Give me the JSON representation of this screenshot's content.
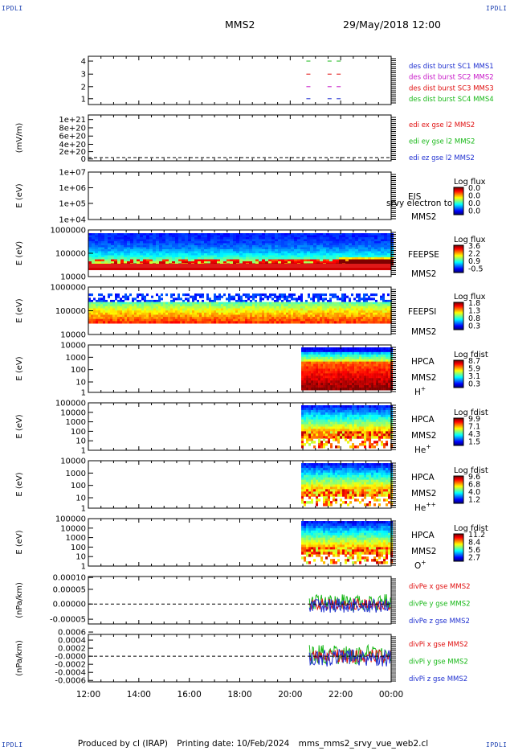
{
  "header": {
    "corner_tl": "IPDLI",
    "corner_tr": "IPDLI",
    "corner_bl": "IPDLI",
    "corner_br": "IPDLI",
    "spacecraft": "MMS2",
    "datetime": "29/May/2018 12:00"
  },
  "footer": {
    "produced_by": "Produced by cl (IRAP)",
    "printing_date": "Printing date: 10/Feb/2024",
    "filename": "mms_mms2_srvy_vue_web2.cl"
  },
  "colors": {
    "blue": "#1f30d0",
    "red": "#e01010",
    "green": "#18b818",
    "magenta": "#c818c8",
    "black": "#000000"
  },
  "chart_data": [
    {
      "type": "line",
      "id": "des",
      "ylabel": "",
      "yticks": [
        "1",
        "2",
        "3",
        "4"
      ],
      "legend": [
        {
          "label": "des dist burst SC1 MMS1",
          "color": "#1f30d0"
        },
        {
          "label": "des dist burst SC2 MMS2",
          "color": "#c818c8"
        },
        {
          "label": "des dist burst SC3 MMS3",
          "color": "#e01010"
        },
        {
          "label": "des dist burst SC4 MMS4",
          "color": "#18b818"
        }
      ]
    },
    {
      "type": "line",
      "id": "edi",
      "ylabel": "(mV/m)",
      "yticks": [
        "0",
        "2e+20",
        "4e+20",
        "6e+20",
        "8e+20",
        "1e+21"
      ],
      "legend": [
        {
          "label": "edi ex gse l2 MMS2",
          "color": "#e01010"
        },
        {
          "label": "edi ey gse l2 MMS2",
          "color": "#18b818"
        },
        {
          "label": "edi ez gse l2 MMS2",
          "color": "#1f30d0"
        }
      ]
    },
    {
      "type": "heatmap",
      "id": "eis",
      "ylabel": "E (eV)",
      "yticks": [
        "1e+04",
        "1e+05",
        "1e+06",
        "1e+07"
      ],
      "side_labels": [
        "EIS",
        "MMS2"
      ],
      "overlay_text": "srvy electron to",
      "colorbar_title": "Log flux",
      "colorbar_ticks": [
        "0.0",
        "0.0",
        "0.0",
        "0.0"
      ]
    },
    {
      "type": "heatmap",
      "id": "feeps_e",
      "ylabel": "E (eV)",
      "yticks": [
        "10000",
        "100000",
        "1000000"
      ],
      "side_labels": [
        "FEEPSE",
        "MMS2"
      ],
      "colorbar_title": "Log flux",
      "colorbar_ticks": [
        "3.6",
        "2.2",
        "0.9",
        "-0.5"
      ]
    },
    {
      "type": "heatmap",
      "id": "feeps_i",
      "ylabel": "E (eV)",
      "yticks": [
        "10000",
        "100000",
        "1000000"
      ],
      "side_labels": [
        "FEEPSI",
        "MMS2"
      ],
      "colorbar_title": "Log flux",
      "colorbar_ticks": [
        "1.8",
        "1.3",
        "0.8",
        "0.3"
      ]
    },
    {
      "type": "heatmap",
      "id": "hpca_h",
      "ylabel": "E (eV)",
      "yticks": [
        "1",
        "10",
        "100",
        "1000",
        "10000"
      ],
      "side_labels": [
        "HPCA",
        "MMS2"
      ],
      "species": "H",
      "species_sup": "+",
      "colorbar_title": "Log fdist",
      "colorbar_ticks": [
        "8.7",
        "5.9",
        "3.1",
        "0.3"
      ]
    },
    {
      "type": "heatmap",
      "id": "hpca_he",
      "ylabel": "E (eV)",
      "yticks": [
        "1",
        "10",
        "100",
        "1000",
        "10000",
        "100000"
      ],
      "side_labels": [
        "HPCA",
        "MMS2"
      ],
      "species": "He",
      "species_sup": "+",
      "colorbar_title": "Log fdist",
      "colorbar_ticks": [
        "9.9",
        "7.1",
        "4.3",
        "1.5"
      ]
    },
    {
      "type": "heatmap",
      "id": "hpca_hepp",
      "ylabel": "E (eV)",
      "yticks": [
        "1",
        "10",
        "100",
        "1000",
        "10000"
      ],
      "side_labels": [
        "HPCA",
        "MMS2"
      ],
      "species": "He",
      "species_sup": "++",
      "colorbar_title": "Log fdist",
      "colorbar_ticks": [
        "9.6",
        "6.8",
        "4.0",
        "1.2"
      ]
    },
    {
      "type": "heatmap",
      "id": "hpca_o",
      "ylabel": "E (eV)",
      "yticks": [
        "1",
        "10",
        "100",
        "1000",
        "10000",
        "100000"
      ],
      "side_labels": [
        "HPCA",
        "MMS2"
      ],
      "species": "O",
      "species_sup": "+",
      "colorbar_title": "Log fdist",
      "colorbar_ticks": [
        "11.2",
        "8.4",
        "5.6",
        "2.7"
      ]
    },
    {
      "type": "line",
      "id": "divpe",
      "ylabel": "(nPa/km)",
      "yticks": [
        "-0.00005",
        "0.00000",
        "0.00005",
        "0.00010"
      ],
      "legend": [
        {
          "label": "divPe x gse MMS2",
          "color": "#e01010"
        },
        {
          "label": "divPe y gse MMS2",
          "color": "#18b818"
        },
        {
          "label": "divPe z gse MMS2",
          "color": "#1f30d0"
        }
      ]
    },
    {
      "type": "line",
      "id": "divpi",
      "ylabel": "(nPa/km)",
      "yticks": [
        "-0.0006",
        "-0.0004",
        "-0.0002",
        "-0.0000",
        "0.0002",
        "0.0004",
        "0.0006"
      ],
      "legend": [
        {
          "label": "divPi x gse MMS2",
          "color": "#e01010"
        },
        {
          "label": "divPi y gse MMS2",
          "color": "#18b818"
        },
        {
          "label": "divPi z gse MMS2",
          "color": "#1f30d0"
        }
      ]
    }
  ],
  "time_axis": {
    "ticks": [
      "12:00",
      "14:00",
      "16:00",
      "18:00",
      "20:00",
      "22:00",
      "00:00"
    ]
  }
}
